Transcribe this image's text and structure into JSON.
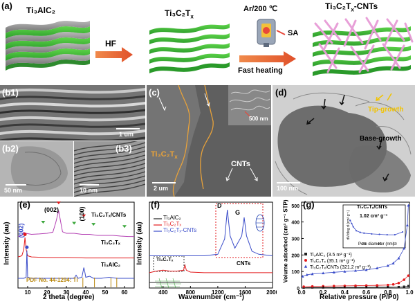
{
  "panel_a": {
    "label": "(a)",
    "stage1": "Ti₃AlC₂",
    "step1": "HF",
    "stage2": "Ti₃C₂T",
    "stage2_sub": "x",
    "step2_top": "Ar/200 ℃",
    "step2_sa": "SA",
    "step2_bottom": "Fast heating",
    "stage3": "Ti₃C₂T",
    "stage3_sub": "x",
    "stage3_suffix": "-CNTs"
  },
  "panel_b1": {
    "label": "(b1)",
    "scale": "1 um"
  },
  "panel_b2": {
    "label": "(b2)",
    "scale": "50 nm"
  },
  "panel_b3": {
    "label": "(b3)",
    "scale": "10 nm"
  },
  "panel_c": {
    "label": "(c)",
    "inset_scale": "500 nm",
    "mat": "Ti₃C₂T",
    "mat_sub": "x",
    "cnts": "CNTs",
    "scale": "2 um"
  },
  "panel_d": {
    "label": "(d)",
    "tip": "Tip-growth",
    "base": "Base-growth",
    "scale": "100 nm"
  },
  "panel_e": {
    "label": "(e)",
    "ylabel": "Intensity (au)",
    "xlabel": "2 theta (degree)",
    "peak_002_blue": "(002)",
    "peak_002": "(002)",
    "peak_100": "(100)",
    "series_top": "Ti₃C₂Tₓ/CNTs",
    "series_mid": "Ti₃C₂Tₓ",
    "series_bot": "Ti₃AlC₂",
    "pdf": "PDF No. 44-1294: Ti",
    "xticks": [
      "10",
      "20",
      "30",
      "40",
      "50",
      "60"
    ]
  },
  "panel_f": {
    "label": "(f)",
    "ylabel": "Intensity (au)",
    "xlabel": "Wavenumber (cm⁻¹)",
    "legend": [
      "Ti₃AlC₂",
      "Ti₃C₂Tₓ",
      "Ti₃C₂Tₓ-CNTs"
    ],
    "box1_label": "Ti₃C₂Tₓ",
    "box2_label": "CNTs",
    "peak_d": "D",
    "peak_g": "G",
    "xticks": [
      "400",
      "800",
      "1200",
      "1600",
      "2000"
    ]
  },
  "panel_g": {
    "label": "(g)",
    "ylabel": "Volume adsorbed (cm³ g⁻¹ STP)",
    "xlabel": "Relative pressure (P/P0)",
    "yticks": [
      "0",
      "100",
      "200",
      "300",
      "400",
      "500"
    ],
    "xticks": [
      "0.0",
      "0.2",
      "0.4",
      "0.6",
      "0.8",
      "1.0"
    ],
    "legend": [
      "Ti₃AlC₂ (3.5 m² g⁻¹)",
      "Ti₃C₂Tₓ (35.1 m² g⁻¹)",
      "Ti₃C₂Tₓ/CNTs (321.2 m² g⁻¹)"
    ],
    "inset_title": "Ti₃C₂Tₓ/CNTs",
    "inset_value": "1.02 cm³ g⁻¹",
    "inset_xlabel": "Pore diameter (nm)",
    "inset_ylabel": "dV/dlog d (cm³ g⁻¹)",
    "inset_xticks": [
      "20",
      "40",
      "60"
    ],
    "colors": {
      "alc": "#222222",
      "mx": "#e31a1c",
      "cnt": "#3a4cc9"
    }
  },
  "chart_data": [
    {
      "type": "line",
      "title": "",
      "xlabel": "2 theta (degree)",
      "ylabel": "Intensity (au)",
      "xlim": [
        5,
        65
      ],
      "series": [
        {
          "name": "Ti₃C₂Tₓ/CNTs",
          "x": [
            5,
            7,
            8,
            9,
            12,
            16,
            20,
            23,
            24.5,
            26,
            27,
            28,
            30,
            34,
            38,
            42,
            46,
            50,
            54,
            58,
            62,
            65
          ],
          "y": [
            2.4,
            2.45,
            2.6,
            2.55,
            2.5,
            2.52,
            2.55,
            2.6,
            3.05,
            3.6,
            3.1,
            2.62,
            2.55,
            2.55,
            2.5,
            2.5,
            2.45,
            2.45,
            2.45,
            2.42,
            2.4,
            2.4
          ]
        },
        {
          "name": "Ti₃C₂Tₓ",
          "x": [
            5,
            7,
            8,
            8.6,
            9.2,
            10,
            12,
            20,
            30,
            40,
            50,
            60,
            65
          ],
          "y": [
            1.45,
            1.5,
            1.8,
            2.35,
            1.8,
            1.5,
            1.45,
            1.42,
            1.42,
            1.4,
            1.4,
            1.4,
            1.4
          ]
        },
        {
          "name": "Ti₃AlC₂",
          "x": [
            5,
            8,
            9.2,
            9.6,
            10,
            12,
            34,
            35,
            36,
            38,
            39,
            39.5,
            40,
            42,
            44,
            48,
            52,
            56,
            60,
            65
          ],
          "y": [
            0.45,
            0.45,
            0.5,
            1.75,
            0.5,
            0.45,
            0.45,
            0.6,
            0.45,
            0.5,
            0.95,
            0.75,
            0.5,
            0.55,
            0.45,
            0.45,
            0.5,
            0.45,
            0.45,
            0.45
          ]
        }
      ]
    },
    {
      "type": "line",
      "title": "",
      "xlabel": "Wavenumber (cm⁻¹)",
      "ylabel": "Intensity (au)",
      "xlim": [
        200,
        2000
      ],
      "series": [
        {
          "name": "Ti₃AlC₂",
          "x": [
            200,
            400,
            600,
            800,
            1000,
            1200,
            1400,
            1600,
            1800,
            2000
          ],
          "y": [
            0.18,
            0.18,
            0.19,
            0.18,
            0.18,
            0.18,
            0.18,
            0.18,
            0.18,
            0.18
          ]
        },
        {
          "name": "Ti₃C₂Tₓ",
          "x": [
            200,
            300,
            400,
            500,
            600,
            700,
            720,
            740,
            800,
            1000,
            1200,
            1400,
            1600,
            1800,
            2000
          ],
          "y": [
            0.5,
            0.55,
            0.58,
            0.55,
            0.55,
            0.58,
            0.75,
            0.58,
            0.52,
            0.5,
            0.5,
            0.5,
            0.5,
            0.5,
            0.5
          ]
        },
        {
          "name": "Ti₃C₂Tₓ-CNTs",
          "x": [
            200,
            600,
            1000,
            1200,
            1300,
            1340,
            1380,
            1450,
            1550,
            1585,
            1620,
            1700,
            1800,
            2000
          ],
          "y": [
            1.05,
            1.05,
            1.05,
            1.1,
            1.6,
            2.55,
            1.7,
            1.3,
            1.7,
            2.3,
            1.7,
            1.2,
            1.1,
            1.05
          ]
        }
      ]
    },
    {
      "type": "scatter",
      "title": "",
      "xlabel": "Relative pressure (P/P0)",
      "ylabel": "Volume adsorbed (cm³ g⁻¹ STP)",
      "xlim": [
        0,
        1
      ],
      "ylim": [
        0,
        520
      ],
      "series": [
        {
          "name": "Ti₃AlC₂ (3.5 m² g⁻¹)",
          "x": [
            0.02,
            0.1,
            0.2,
            0.3,
            0.4,
            0.5,
            0.6,
            0.7,
            0.8,
            0.9,
            0.95,
            0.99
          ],
          "y": [
            2,
            3,
            3,
            3,
            4,
            4,
            4,
            5,
            5,
            6,
            8,
            12
          ]
        },
        {
          "name": "Ti₃C₂Tₓ (35.1 m² g⁻¹)",
          "x": [
            0.02,
            0.1,
            0.2,
            0.3,
            0.4,
            0.5,
            0.6,
            0.7,
            0.8,
            0.85,
            0.9,
            0.95,
            0.99
          ],
          "y": [
            8,
            10,
            11,
            12,
            13,
            14,
            15,
            16,
            18,
            22,
            30,
            50,
            75
          ]
        },
        {
          "name": "Ti₃C₂Tₓ/CNTs (321.2 m² g⁻¹)",
          "x": [
            0.01,
            0.05,
            0.1,
            0.2,
            0.3,
            0.4,
            0.5,
            0.6,
            0.7,
            0.8,
            0.85,
            0.9,
            0.95,
            0.98,
            0.99
          ],
          "y": [
            70,
            80,
            85,
            90,
            95,
            100,
            105,
            110,
            120,
            135,
            150,
            180,
            240,
            380,
            500
          ]
        }
      ]
    },
    {
      "type": "line",
      "title": "Ti₃C₂Tₓ/CNTs",
      "xlabel": "Pore diameter (nm)",
      "ylabel": "dV/dlog d (cm³ g⁻¹)",
      "series": [
        {
          "name": "Ti₃C₂Tₓ/CNTs",
          "x": [
            2,
            4,
            6,
            10,
            15,
            20,
            30,
            40,
            50,
            60,
            70
          ],
          "y": [
            2.4,
            2.0,
            1.6,
            1.1,
            0.9,
            0.8,
            0.7,
            0.65,
            0.6,
            0.6,
            0.95
          ]
        }
      ]
    }
  ]
}
